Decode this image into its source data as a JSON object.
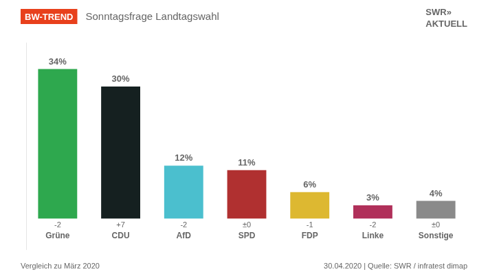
{
  "chart_data": {
    "type": "bar",
    "title": "Sonntagsfrage Landtagswahl",
    "categories": [
      "Grüne",
      "CDU",
      "AfD",
      "SPD",
      "FDP",
      "Linke",
      "Sonstige"
    ],
    "values": [
      34,
      30,
      12,
      11,
      6,
      3,
      4
    ],
    "value_labels": [
      "34%",
      "30%",
      "12%",
      "11%",
      "6%",
      "3%",
      "4%"
    ],
    "data_labels": true,
    "changes": [
      "-2",
      "+7",
      "-2",
      "±0",
      "-1",
      "-2",
      "±0"
    ],
    "colors": [
      "#2ea84e",
      "#152020",
      "#4bbfce",
      "#b03030",
      "#ddb831",
      "#b0305a",
      "#8a8a8a"
    ],
    "ylim": [
      -7,
      40
    ],
    "yticks": [],
    "grid": false,
    "tick_labels": false,
    "annotations": [
      {
        "text": "BW-TREND",
        "color": "#e8401c"
      },
      {
        "text": "SWR»"
      },
      {
        "text": "AKTUELL"
      },
      {
        "text": "Vergleich zu März 2020"
      },
      {
        "text": "30.04.2020 | Quelle: SWR / infratest dimap"
      }
    ]
  }
}
